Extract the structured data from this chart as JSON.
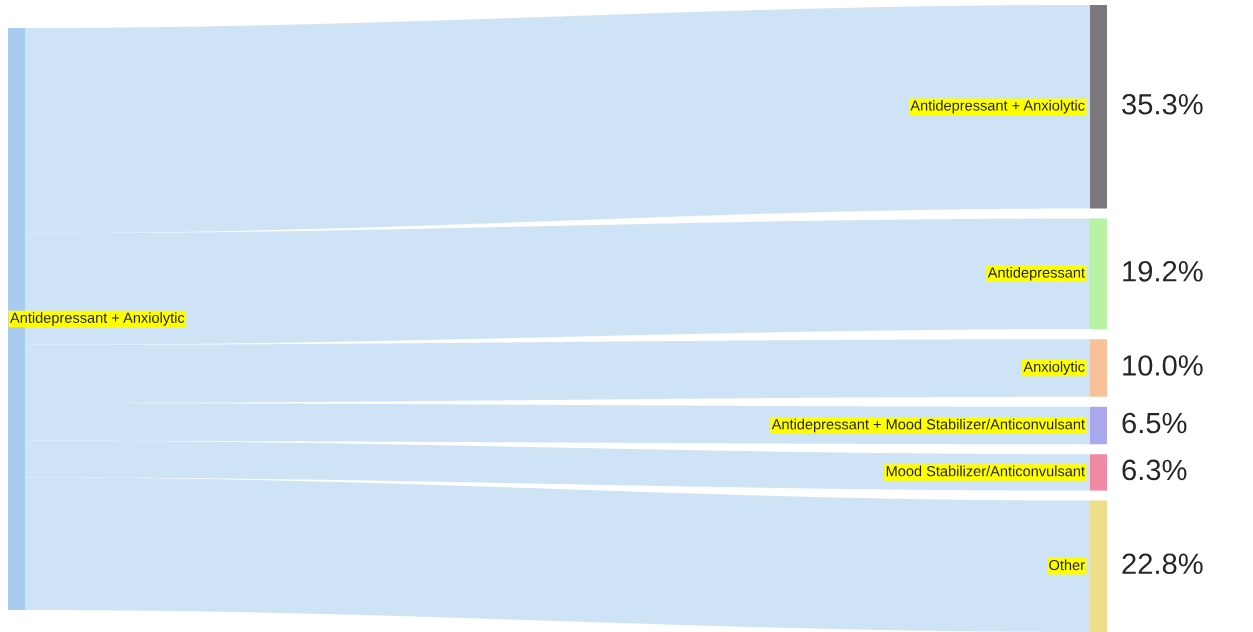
{
  "chart_data": {
    "type": "other",
    "annotations": [
      "Antidepressant + Anxiolytic"
    ],
    "categories": [
      "Antidepressant + Anxiolytic",
      "Antidepressant",
      "Anxiolytic",
      "Antidepressant + Mood Stabilizer/Anticonvulsant",
      "Mood Stabilizer/Anticonvulsant",
      "Other"
    ],
    "series": [
      {
        "color": "#cfe3f6",
        "values": [
          35.3,
          19.2,
          10.0,
          6.5,
          6.3,
          22.8
        ],
        "value_labels": [
          "35.3%",
          "19.2%",
          "10.0%",
          "6.5%",
          "6.3%",
          "22.8%"
        ]
      }
    ],
    "colors": [
      "#7b797d",
      "#b7f2a5",
      "#f8c19a",
      "#aaa9ee",
      "#f08aa2",
      "#ecde8a"
    ]
  }
}
